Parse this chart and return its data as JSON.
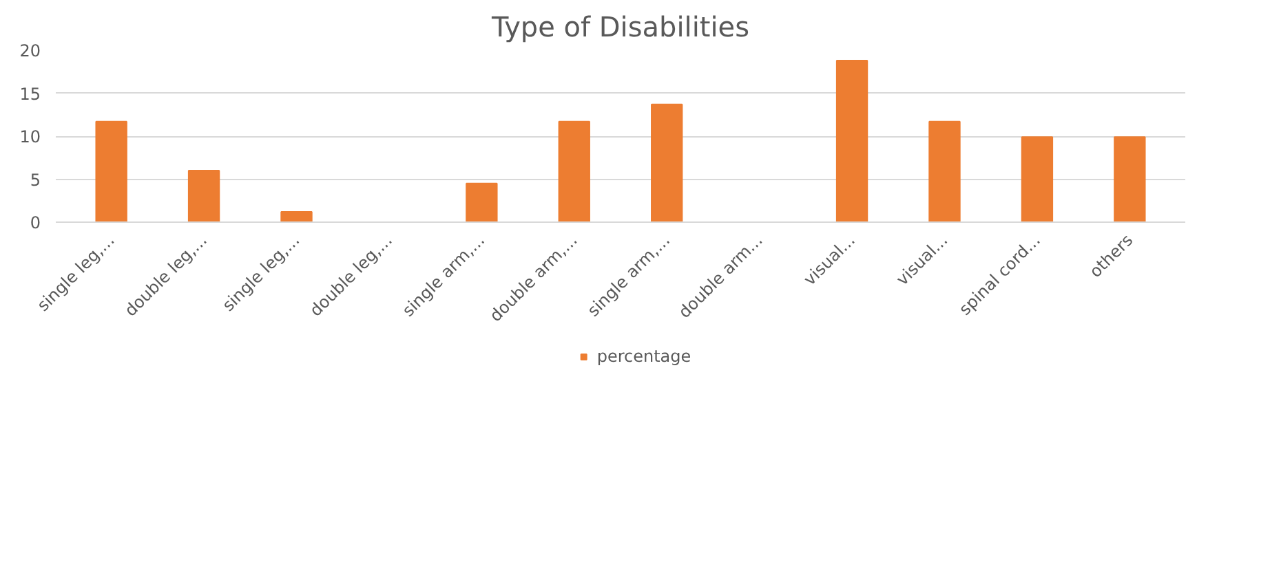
{
  "chart_data": {
    "type": "bar",
    "title": "Type of Disabilities",
    "categories": [
      "single leg,...",
      "double leg,...",
      "single leg,...",
      "double leg,...",
      "single arm,...",
      "double arm,...",
      "single arm,...",
      "double arm...",
      "visual...",
      "visual...",
      "spinal cord...",
      "others"
    ],
    "series": [
      {
        "name": "percentage",
        "color": "#ed7d31",
        "values": [
          11.7,
          6,
          1.2,
          0,
          4.5,
          11.7,
          13.7,
          0,
          18.8,
          11.7,
          9.9,
          9.9
        ]
      }
    ],
    "ylim": [
      0,
      20
    ],
    "yticks": [
      0,
      5,
      10,
      15,
      20
    ],
    "grid": "y",
    "legend": "bottom"
  }
}
